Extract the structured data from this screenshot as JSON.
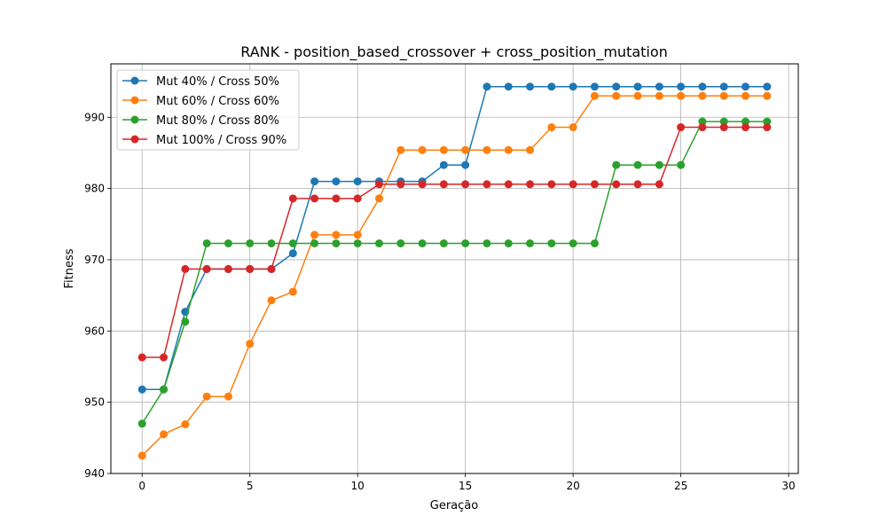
{
  "chart_data": {
    "type": "line",
    "title": "RANK - position_based_crossover + cross_position_mutation",
    "xlabel": "Geração",
    "ylabel": "Fitness",
    "xlim": [
      -1.45,
      30.45
    ],
    "ylim": [
      940,
      997.5
    ],
    "xticks": [
      0,
      5,
      10,
      15,
      20,
      25,
      30
    ],
    "yticks": [
      940,
      950,
      960,
      970,
      980,
      990
    ],
    "grid": true,
    "legend_position": "top-left",
    "x": [
      0,
      1,
      2,
      3,
      4,
      5,
      6,
      7,
      8,
      9,
      10,
      11,
      12,
      13,
      14,
      15,
      16,
      17,
      18,
      19,
      20,
      21,
      22,
      23,
      24,
      25,
      26,
      27,
      28,
      29
    ],
    "series": [
      {
        "name": "Mut 40% / Cross 50%",
        "color": "#1f77b4",
        "values": [
          951.8,
          951.8,
          962.7,
          968.7,
          968.7,
          968.7,
          968.7,
          970.9,
          981.0,
          981.0,
          981.0,
          981.0,
          981.0,
          981.0,
          983.3,
          983.3,
          994.3,
          994.3,
          994.3,
          994.3,
          994.3,
          994.3,
          994.3,
          994.3,
          994.3,
          994.3,
          994.3,
          994.3,
          994.3,
          994.3
        ]
      },
      {
        "name": "Mut 60% / Cross 60%",
        "color": "#ff7f0e",
        "values": [
          942.5,
          945.5,
          946.9,
          950.8,
          950.8,
          958.2,
          964.3,
          965.5,
          973.5,
          973.5,
          973.5,
          978.6,
          985.4,
          985.4,
          985.4,
          985.4,
          985.4,
          985.4,
          985.4,
          988.6,
          988.6,
          993.0,
          993.0,
          993.0,
          993.0,
          993.0,
          993.0,
          993.0,
          993.0,
          993.0
        ]
      },
      {
        "name": "Mut 80% / Cross 80%",
        "color": "#2ca02c",
        "values": [
          947.0,
          951.8,
          961.3,
          972.3,
          972.3,
          972.3,
          972.3,
          972.3,
          972.3,
          972.3,
          972.3,
          972.3,
          972.3,
          972.3,
          972.3,
          972.3,
          972.3,
          972.3,
          972.3,
          972.3,
          972.3,
          972.3,
          983.3,
          983.3,
          983.3,
          983.3,
          989.4,
          989.4,
          989.4,
          989.4
        ]
      },
      {
        "name": "Mut 100% / Cross 90%",
        "color": "#d62728",
        "values": [
          956.3,
          956.3,
          968.7,
          968.7,
          968.7,
          968.7,
          968.7,
          978.6,
          978.6,
          978.6,
          978.6,
          980.6,
          980.6,
          980.6,
          980.6,
          980.6,
          980.6,
          980.6,
          980.6,
          980.6,
          980.6,
          980.6,
          980.6,
          980.6,
          980.6,
          988.6,
          988.6,
          988.6,
          988.6,
          988.6
        ]
      }
    ]
  }
}
